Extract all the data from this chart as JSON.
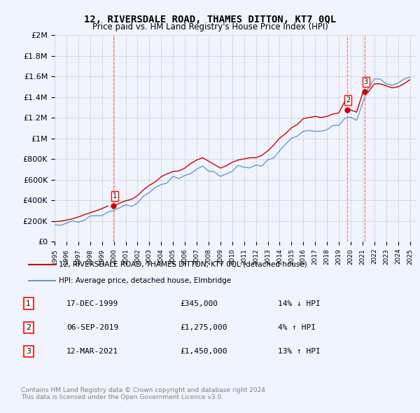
{
  "title": "12, RIVERSDALE ROAD, THAMES DITTON, KT7 0QL",
  "subtitle": "Price paid vs. HM Land Registry's House Price Index (HPI)",
  "legend_line1": "12, RIVERSDALE ROAD, THAMES DITTON, KT7 0QL (detached house)",
  "legend_line2": "HPI: Average price, detached house, Elmbridge",
  "table_rows": [
    {
      "num": "1",
      "date": "17-DEC-1999",
      "price": "£345,000",
      "hpi": "14% ↓ HPI"
    },
    {
      "num": "2",
      "date": "06-SEP-2019",
      "price": "£1,275,000",
      "hpi": "4% ↑ HPI"
    },
    {
      "num": "3",
      "date": "12-MAR-2021",
      "price": "£1,450,000",
      "hpi": "13% ↑ HPI"
    }
  ],
  "footnote1": "Contains HM Land Registry data © Crown copyright and database right 2024.",
  "footnote2": "This data is licensed under the Open Government Licence v3.0.",
  "sale_color": "#cc0000",
  "hpi_color": "#6699cc",
  "vline_color": "#ff6666",
  "background_color": "#f0f4ff",
  "plot_bg_color": "#ffffff",
  "grid_color": "#cccccc",
  "ylim": [
    0,
    2000000
  ],
  "yticks": [
    0,
    200000,
    400000,
    600000,
    800000,
    1000000,
    1200000,
    1400000,
    1600000,
    1800000,
    2000000
  ],
  "sale_points": [
    {
      "year": 1999.96,
      "price": 345000,
      "label": "1"
    },
    {
      "year": 2019.68,
      "price": 1275000,
      "label": "2"
    },
    {
      "year": 2021.19,
      "price": 1450000,
      "label": "3"
    }
  ],
  "xmin": 1995,
  "xmax": 2025.5
}
